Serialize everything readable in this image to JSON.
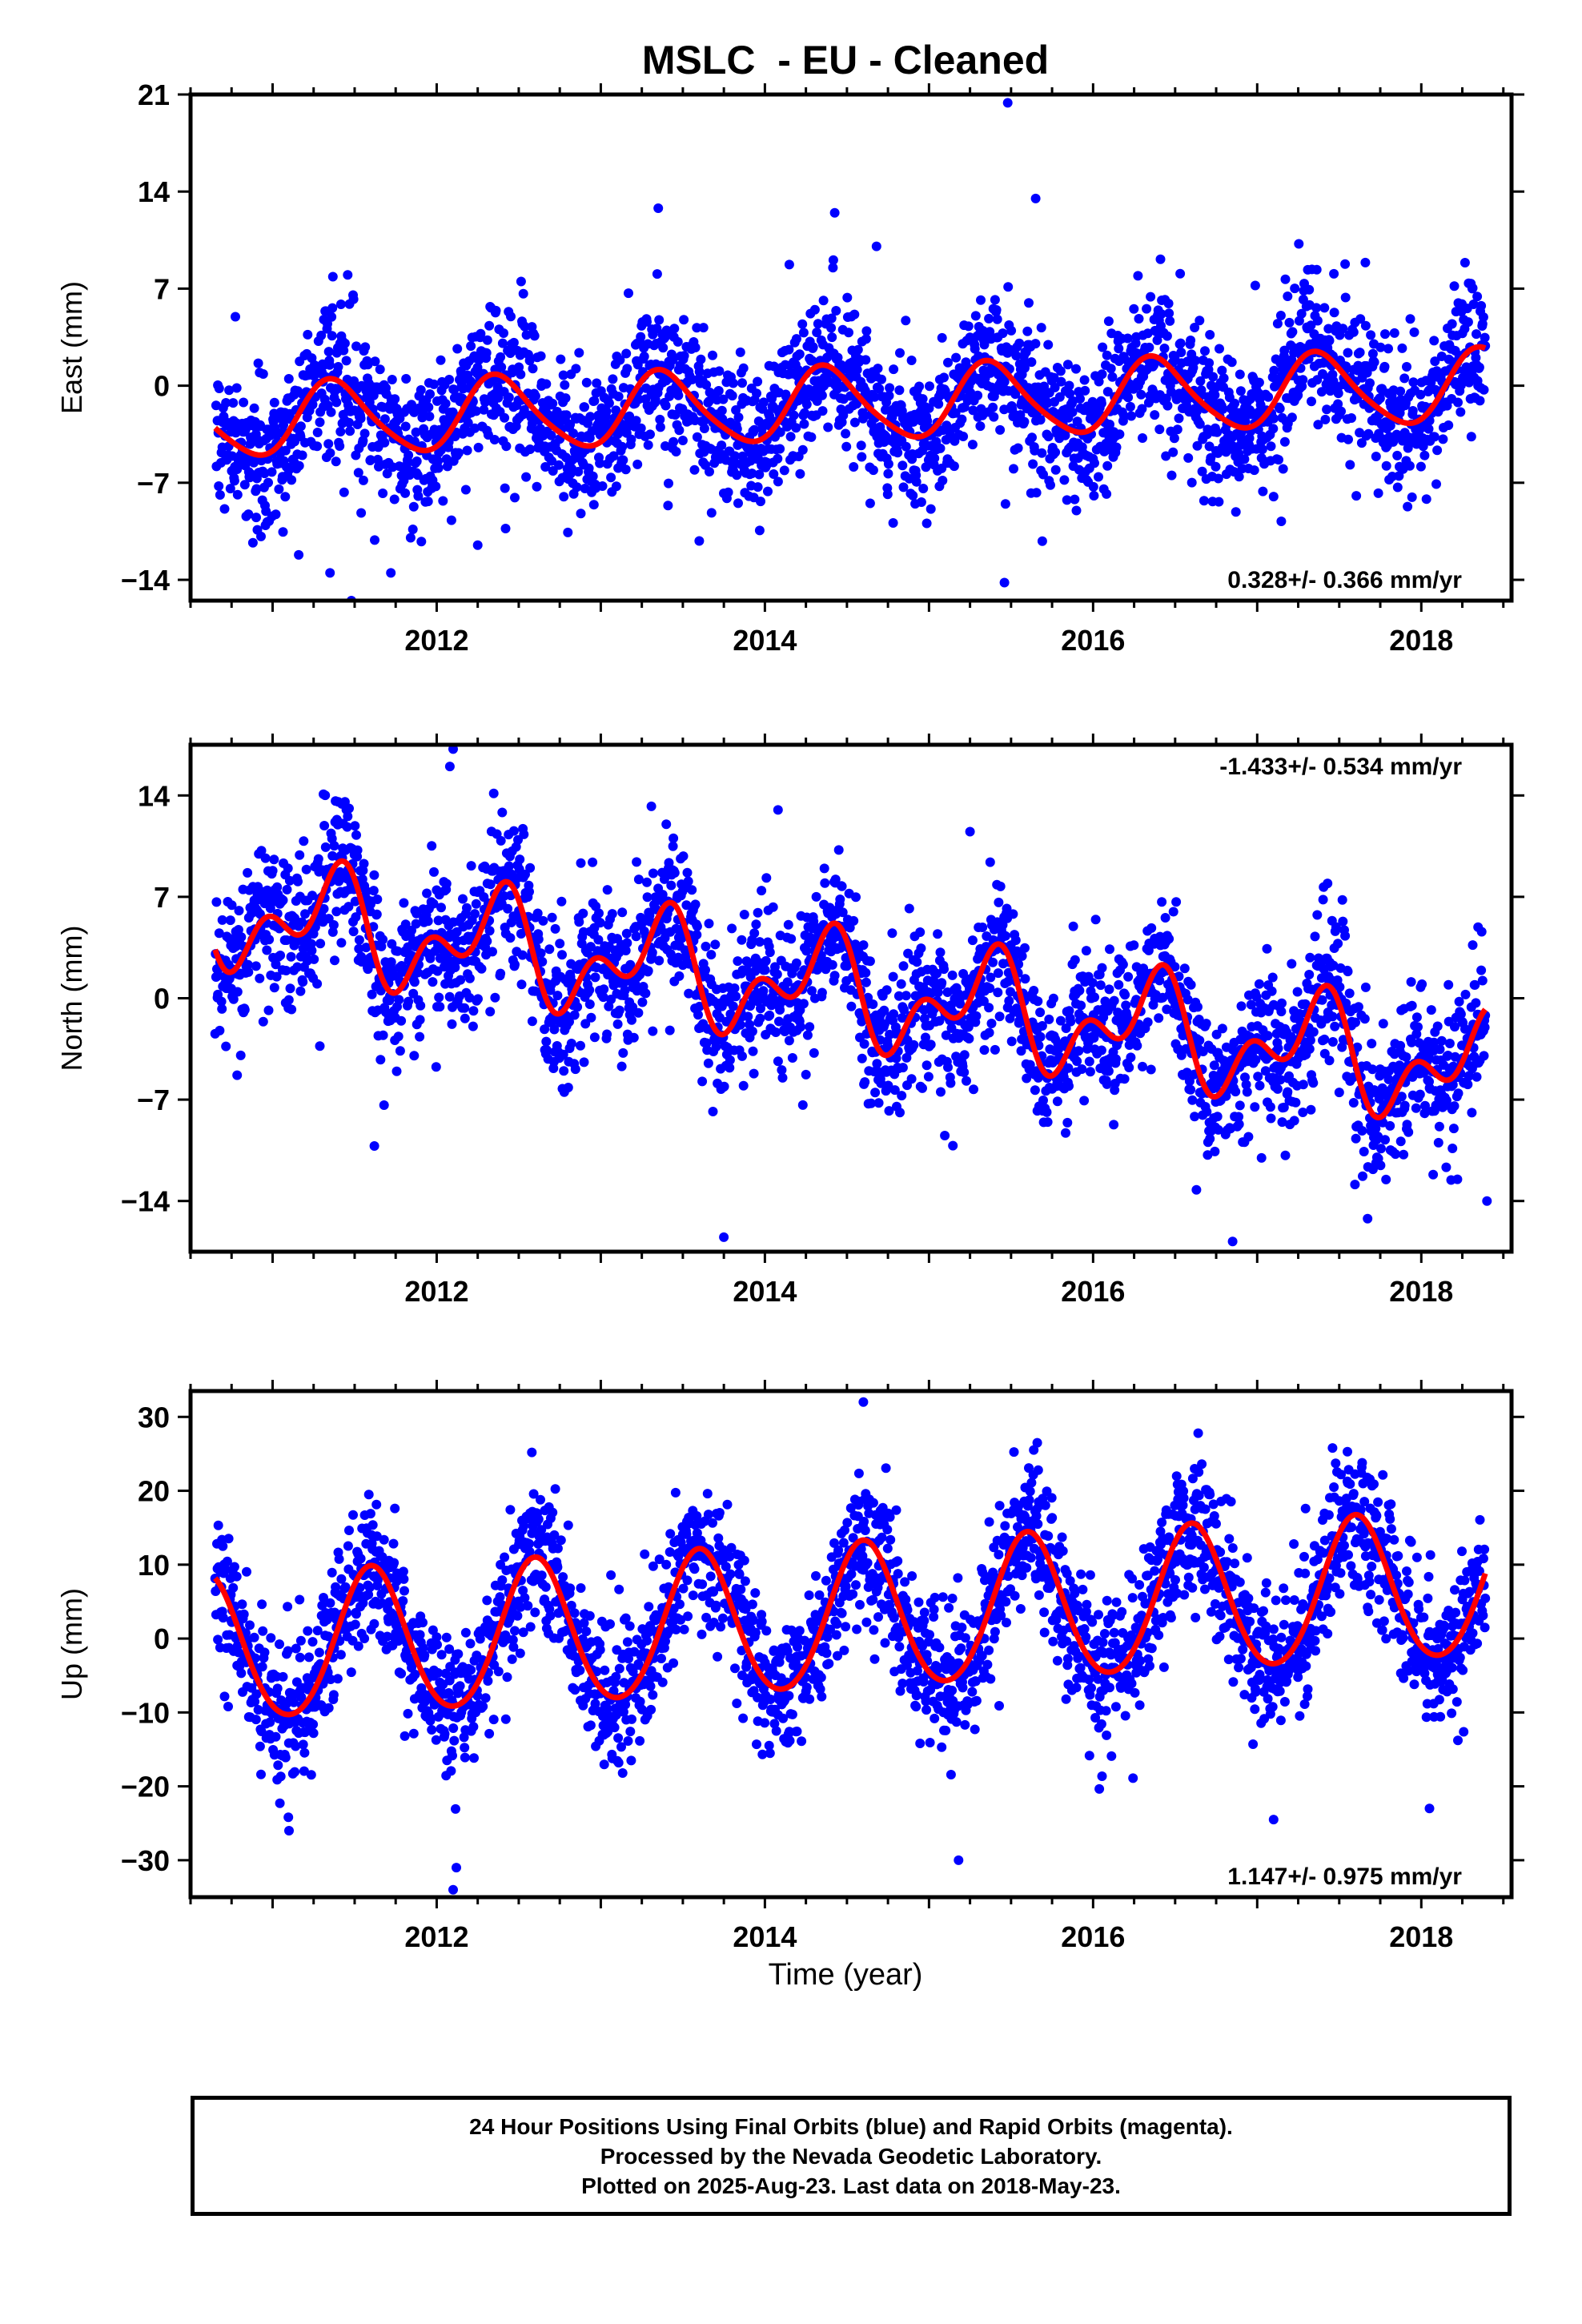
{
  "title": "MSLC  - EU - Cleaned",
  "xlabel": "Time (year)",
  "colors": {
    "points": "#0000ff",
    "fit": "#ff0000",
    "axes": "#000000",
    "rapid": "#ff00ff"
  },
  "footer": {
    "line1": "24 Hour Positions Using Final Orbits (blue) and Rapid Orbits (magenta).",
    "line2": "Processed by the Nevada Geodetic Laboratory.",
    "line3": "Plotted on 2025-Aug-23. Last data on 2018-May-23."
  },
  "chart_data": [
    {
      "type": "scatter",
      "component": "east",
      "ylabel": "East (mm)",
      "rate_label": "0.328+/- 0.366 mm/yr",
      "rate_position": "bottom-right",
      "xlim": [
        2010.5,
        2018.55
      ],
      "ylim": [
        -15.5,
        21
      ],
      "x_ticks": [
        2012,
        2014,
        2016,
        2018
      ],
      "y_ticks": [
        -14,
        -7,
        0,
        7,
        14,
        21
      ],
      "data_range": [
        2010.65,
        2018.39
      ],
      "trend": {
        "rate": 0.328,
        "value_at_2010.65": -2.6
      },
      "seasonal": {
        "annual_amp": 2.6,
        "annual_peak": 0.38,
        "semiannual_amp": 0.4,
        "semiannual_peak": 0.3
      },
      "scatter_std": 2.6,
      "outliers": [
        {
          "x": 2015.48,
          "y": 20.4
        },
        {
          "x": 2011.48,
          "y": -15.5
        },
        {
          "x": 2015.46,
          "y": -14.2
        },
        {
          "x": 2011.35,
          "y": -13.5
        },
        {
          "x": 2013.6,
          "y": -11.2
        },
        {
          "x": 2012.25,
          "y": -11.5
        },
        {
          "x": 2012.42,
          "y": -10.3
        },
        {
          "x": 2010.9,
          "y": -9.5
        },
        {
          "x": 2017.1,
          "y": -8.0
        },
        {
          "x": 2015.65,
          "y": 13.5
        },
        {
          "x": 2013.35,
          "y": 12.8
        }
      ]
    },
    {
      "type": "scatter",
      "component": "north",
      "ylabel": "North (mm)",
      "rate_label": "-1.433+/- 0.534 mm/yr",
      "rate_position": "top-right",
      "xlim": [
        2010.5,
        2018.55
      ],
      "ylim": [
        -17.5,
        17.5
      ],
      "x_ticks": [
        2012,
        2014,
        2016,
        2018
      ],
      "y_ticks": [
        -14,
        -7,
        0,
        7,
        14
      ],
      "data_range": [
        2010.65,
        2018.39
      ],
      "trend": {
        "rate": -1.433,
        "value_at_2010.65": 6.0
      },
      "seasonal": {
        "annual_amp": 2.8,
        "annual_peak": 0.35,
        "semiannual_amp": 2.2,
        "semiannual_peak": 0.45
      },
      "scatter_std": 2.5,
      "outliers": [
        {
          "x": 2012.1,
          "y": 17.2
        },
        {
          "x": 2012.08,
          "y": 16.0
        },
        {
          "x": 2013.75,
          "y": -16.5
        },
        {
          "x": 2016.85,
          "y": -16.8
        },
        {
          "x": 2018.4,
          "y": -14.0
        },
        {
          "x": 2018.22,
          "y": -12.5
        },
        {
          "x": 2011.62,
          "y": -10.2
        },
        {
          "x": 2014.08,
          "y": 13.0
        },
        {
          "x": 2015.25,
          "y": 11.5
        }
      ]
    },
    {
      "type": "scatter",
      "component": "up",
      "ylabel": "Up (mm)",
      "rate_label": "1.147+/- 0.975 mm/yr",
      "rate_position": "bottom-right",
      "xlim": [
        2010.5,
        2018.55
      ],
      "ylim": [
        -35,
        33.5
      ],
      "x_ticks": [
        2012,
        2014,
        2016,
        2018
      ],
      "y_ticks": [
        -30,
        -20,
        -10,
        0,
        10,
        20,
        30
      ],
      "data_range": [
        2010.65,
        2018.39
      ],
      "trend": {
        "rate": 1.147,
        "value_at_2010.65": -1.8
      },
      "seasonal": {
        "annual_amp": 9.8,
        "annual_peak": 0.6,
        "semiannual_amp": 0.8,
        "semiannual_peak": 0.1
      },
      "scatter_std": 4.8,
      "outliers": [
        {
          "x": 2014.6,
          "y": 32.0
        },
        {
          "x": 2012.1,
          "y": -34.0
        },
        {
          "x": 2012.12,
          "y": -31.0
        },
        {
          "x": 2015.18,
          "y": -30.0
        },
        {
          "x": 2015.66,
          "y": 26.5
        },
        {
          "x": 2012.58,
          "y": 25.2
        },
        {
          "x": 2011.1,
          "y": -26.0
        },
        {
          "x": 2017.55,
          "y": 25.3
        },
        {
          "x": 2017.1,
          "y": -24.5
        },
        {
          "x": 2018.05,
          "y": -23.0
        }
      ]
    }
  ]
}
